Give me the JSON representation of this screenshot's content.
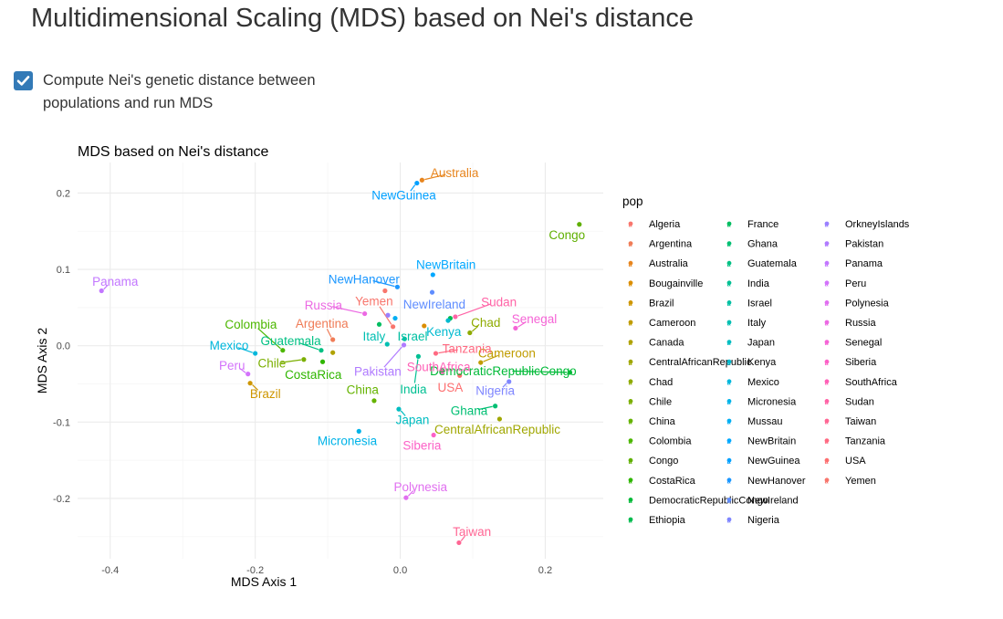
{
  "page": {
    "title": "Multidimensional Scaling (MDS) based on Nei's distance"
  },
  "controls": {
    "run_mds_checked": true,
    "run_mds_label": "Compute Nei's genetic distance between populations and run MDS"
  },
  "colors": {
    "checkbox_fill": "#337ab7",
    "grid": "#ebebeb"
  },
  "chart_data": {
    "type": "scatter",
    "title": "MDS based on Nei's distance",
    "xlabel": "MDS Axis 1",
    "ylabel": "MDS Axis 2",
    "xlim": [
      -0.445,
      0.28
    ],
    "ylim": [
      -0.279,
      0.24
    ],
    "xticks": [
      -0.4,
      -0.2,
      0.0,
      0.2
    ],
    "xtick_labels": [
      "-0.4",
      "-0.2",
      "0.0",
      "0.2"
    ],
    "yticks": [
      -0.2,
      -0.1,
      0.0,
      0.1,
      0.2
    ],
    "ytick_labels": [
      "-0.2",
      "-0.1",
      "0.0",
      "0.1",
      "0.2"
    ],
    "grid": true,
    "legend": {
      "title": "pop",
      "placement": "right",
      "columns": 3
    },
    "points": [
      {
        "name": "Algeria",
        "x": -0.021,
        "y": 0.072,
        "color": "#F8766D"
      },
      {
        "name": "Argentina",
        "x": -0.093,
        "y": 0.008,
        "color": "#F07C57",
        "label_x": -0.108,
        "label_y": 0.029
      },
      {
        "name": "Australia",
        "x": 0.03,
        "y": 0.217,
        "color": "#E7851E",
        "label_x": 0.075,
        "label_y": 0.226
      },
      {
        "name": "Bougainville",
        "x": 0.033,
        "y": 0.026,
        "color": "#DB8E00"
      },
      {
        "name": "Brazil",
        "x": -0.207,
        "y": -0.049,
        "color": "#CE9600",
        "label_x": -0.186,
        "label_y": -0.063
      },
      {
        "name": "Cameroon",
        "x": 0.111,
        "y": -0.022,
        "color": "#C09C00",
        "label_x": 0.147,
        "label_y": -0.01
      },
      {
        "name": "Canada",
        "x": -0.093,
        "y": -0.009,
        "color": "#B0A200"
      },
      {
        "name": "CentralAfricanRepublic",
        "x": 0.137,
        "y": -0.096,
        "color": "#A0A700",
        "label_x": 0.134,
        "label_y": -0.11
      },
      {
        "name": "Chad",
        "x": 0.096,
        "y": 0.017,
        "color": "#8FAB00",
        "label_x": 0.118,
        "label_y": 0.03
      },
      {
        "name": "Chile",
        "x": -0.133,
        "y": -0.018,
        "color": "#7BAF00",
        "label_x": -0.177,
        "label_y": -0.023
      },
      {
        "name": "China",
        "x": -0.036,
        "y": -0.072,
        "color": "#65B300",
        "label_x": -0.052,
        "label_y": -0.058
      },
      {
        "name": "Colombia",
        "x": -0.162,
        "y": -0.006,
        "color": "#4CB700",
        "label_x": -0.206,
        "label_y": 0.028
      },
      {
        "name": "Congo",
        "x": 0.247,
        "y": 0.159,
        "color": "#5FAF00",
        "label_x": 0.23,
        "label_y": 0.145
      },
      {
        "name": "CostaRica",
        "x": -0.107,
        "y": -0.021,
        "color": "#2FB600",
        "label_x": -0.12,
        "label_y": -0.038
      },
      {
        "name": "DemocraticRepublicCongo",
        "x": 0.234,
        "y": -0.035,
        "color": "#00BA38",
        "label_x": 0.142,
        "label_y": -0.033
      },
      {
        "name": "Ethiopia",
        "x": 0.069,
        "y": 0.036,
        "color": "#00BB4E"
      },
      {
        "name": "France",
        "x": -0.029,
        "y": 0.028,
        "color": "#00BD61"
      },
      {
        "name": "Ghana",
        "x": 0.131,
        "y": -0.079,
        "color": "#00BF73",
        "label_x": 0.095,
        "label_y": -0.085
      },
      {
        "name": "Guatemala",
        "x": -0.109,
        "y": -0.006,
        "color": "#00C083",
        "label_x": -0.151,
        "label_y": 0.006
      },
      {
        "name": "India",
        "x": 0.025,
        "y": -0.014,
        "color": "#00C093",
        "label_x": 0.018,
        "label_y": -0.057
      },
      {
        "name": "Israel",
        "x": 0.006,
        "y": 0.009,
        "color": "#00C0A3",
        "label_x": 0.017,
        "label_y": 0.012
      },
      {
        "name": "Italy",
        "x": -0.018,
        "y": 0.002,
        "color": "#00BFB2",
        "label_x": -0.036,
        "label_y": 0.012
      },
      {
        "name": "Japan",
        "x": -0.002,
        "y": -0.083,
        "color": "#00BDC1",
        "label_x": 0.017,
        "label_y": -0.097
      },
      {
        "name": "Kenya",
        "x": 0.066,
        "y": 0.033,
        "color": "#00BACF",
        "label_x": 0.06,
        "label_y": 0.018
      },
      {
        "name": "Mexico",
        "x": -0.2,
        "y": -0.01,
        "color": "#00B7DC",
        "label_x": -0.236,
        "label_y": 0.0
      },
      {
        "name": "Micronesia",
        "x": -0.057,
        "y": -0.112,
        "color": "#00B3E8",
        "label_x": -0.073,
        "label_y": -0.125
      },
      {
        "name": "Mussau",
        "x": -0.007,
        "y": 0.036,
        "color": "#00AEF3"
      },
      {
        "name": "NewBritain",
        "x": 0.045,
        "y": 0.093,
        "color": "#00A8FF",
        "label_x": 0.063,
        "label_y": 0.106
      },
      {
        "name": "NewGuinea",
        "x": 0.023,
        "y": 0.213,
        "color": "#00A0FF",
        "label_x": 0.005,
        "label_y": 0.197
      },
      {
        "name": "NewHanover",
        "x": -0.004,
        "y": 0.077,
        "color": "#1B97FF",
        "label_x": -0.05,
        "label_y": 0.087
      },
      {
        "name": "NewIreland",
        "x": 0.044,
        "y": 0.07,
        "color": "#5F8DFF",
        "label_x": 0.047,
        "label_y": 0.054
      },
      {
        "name": "Nigeria",
        "x": 0.15,
        "y": -0.047,
        "color": "#7F86FF",
        "label_x": 0.131,
        "label_y": -0.059
      },
      {
        "name": "OrkneyIslands",
        "x": -0.017,
        "y": 0.04,
        "color": "#9A80FF"
      },
      {
        "name": "Pakistan",
        "x": 0.005,
        "y": 0.001,
        "color": "#B07BFF",
        "label_x": -0.031,
        "label_y": -0.034
      },
      {
        "name": "Panama",
        "x": -0.412,
        "y": 0.072,
        "color": "#C377FF",
        "label_x": -0.393,
        "label_y": 0.084
      },
      {
        "name": "Peru",
        "x": -0.21,
        "y": -0.037,
        "color": "#D373FB",
        "label_x": -0.232,
        "label_y": -0.026
      },
      {
        "name": "Polynesia",
        "x": 0.008,
        "y": -0.199,
        "color": "#E16FF0",
        "label_x": 0.028,
        "label_y": -0.185
      },
      {
        "name": "Russia",
        "x": -0.049,
        "y": 0.042,
        "color": "#EC69E3",
        "label_x": -0.106,
        "label_y": 0.053
      },
      {
        "name": "Senegal",
        "x": 0.159,
        "y": 0.023,
        "color": "#F564D6",
        "label_x": 0.185,
        "label_y": 0.035
      },
      {
        "name": "Siberia",
        "x": 0.046,
        "y": -0.117,
        "color": "#FC61C7",
        "label_x": 0.03,
        "label_y": -0.131
      },
      {
        "name": "SouthAfrica",
        "x": 0.058,
        "y": -0.034,
        "color": "#FF61B7",
        "label_x": 0.053,
        "label_y": -0.028
      },
      {
        "name": "Sudan",
        "x": 0.076,
        "y": 0.038,
        "color": "#FF63A6",
        "label_x": 0.136,
        "label_y": 0.057
      },
      {
        "name": "Taiwan",
        "x": 0.081,
        "y": -0.258,
        "color": "#FF6694",
        "label_x": 0.099,
        "label_y": -0.244
      },
      {
        "name": "Tanzania",
        "x": 0.049,
        "y": -0.01,
        "color": "#FF6A82",
        "label_x": 0.092,
        "label_y": -0.004
      },
      {
        "name": "USA",
        "x": 0.082,
        "y": -0.039,
        "color": "#FD6F70",
        "label_x": 0.069,
        "label_y": -0.055
      },
      {
        "name": "Yemen",
        "x": -0.01,
        "y": 0.025,
        "color": "#F8766D",
        "label_x": -0.036,
        "label_y": 0.058
      }
    ]
  }
}
